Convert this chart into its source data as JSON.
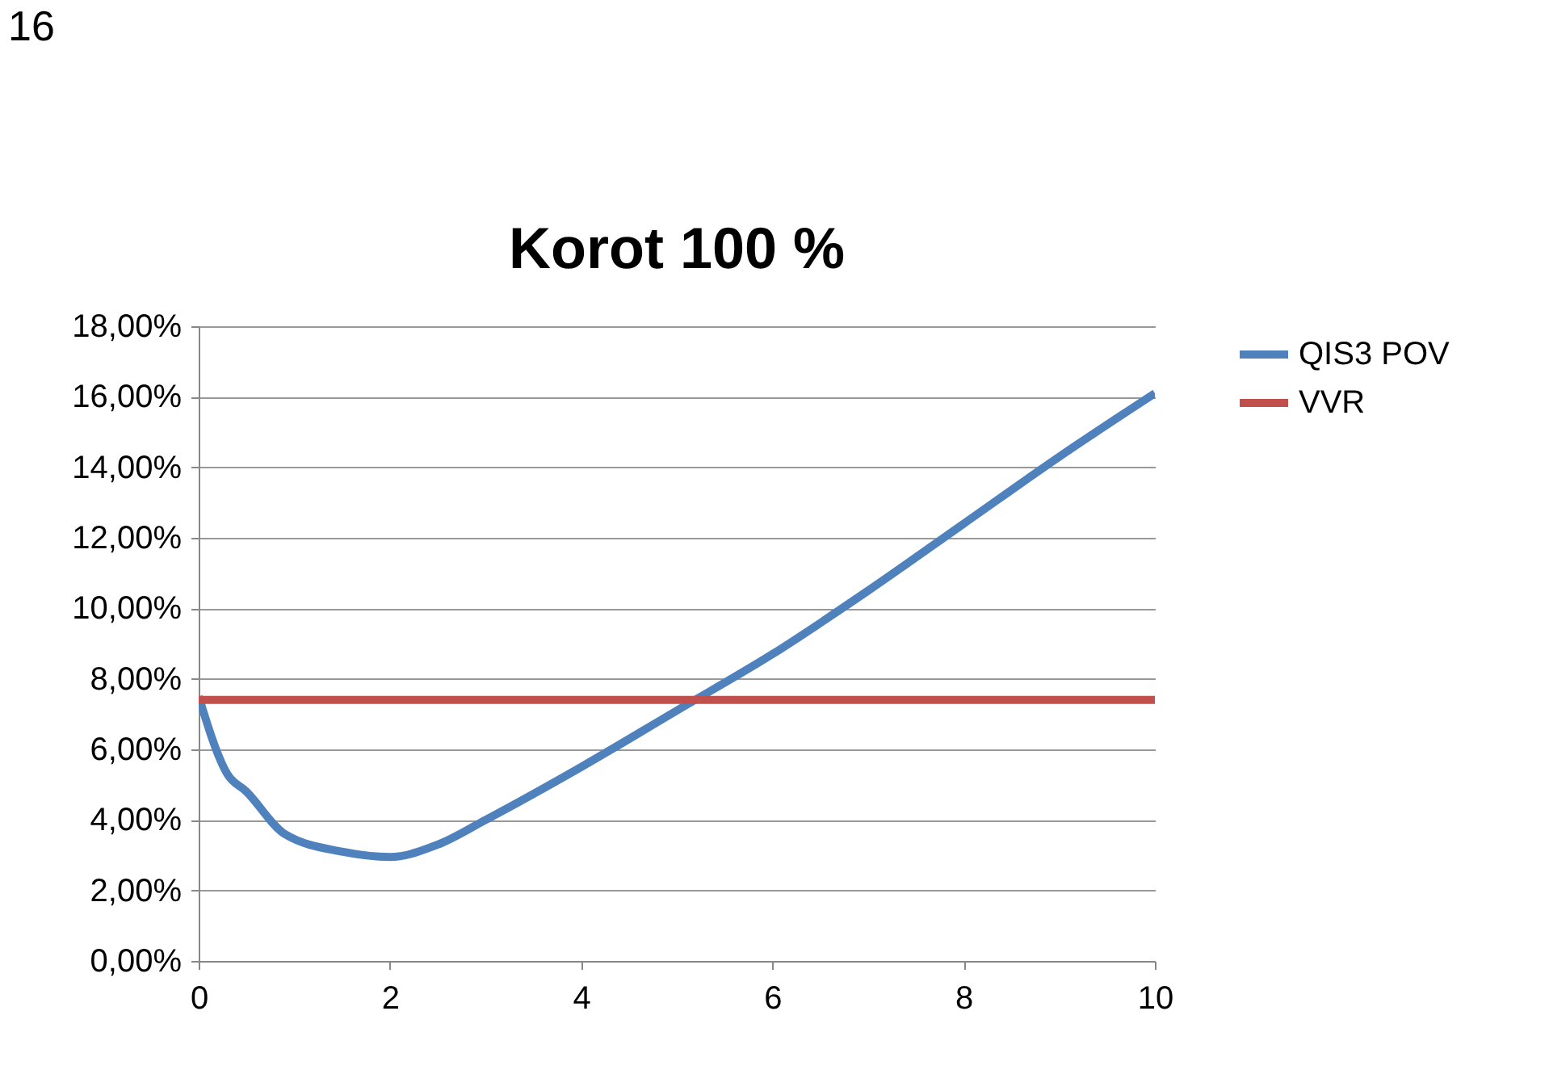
{
  "chart_data": {
    "type": "line",
    "title": "Korot 100 %",
    "annotations": [
      "16"
    ],
    "xlim": [
      0,
      10
    ],
    "xticks": [
      0,
      2,
      4,
      6,
      8,
      10
    ],
    "ylim": [
      0,
      18
    ],
    "yticks": [
      {
        "value": 0,
        "label": "0,00%"
      },
      {
        "value": 2,
        "label": "2,00%"
      },
      {
        "value": 4,
        "label": "4,00%"
      },
      {
        "value": 6,
        "label": "6,00%"
      },
      {
        "value": 8,
        "label": "8,00%"
      },
      {
        "value": 10,
        "label": "10,00%"
      },
      {
        "value": 12,
        "label": "12,00%"
      },
      {
        "value": 14,
        "label": "14,00%"
      },
      {
        "value": 16,
        "label": "16,00%"
      },
      {
        "value": 18,
        "label": "18,00%"
      }
    ],
    "grid": "y",
    "legend": "right",
    "marker": "none",
    "line_style": "solid",
    "series": [
      {
        "name": "QIS3 POV",
        "color": "#4f81bd",
        "x": [
          0,
          0.3,
          0.5,
          0.9,
          1.5,
          2,
          2.5,
          3,
          4,
          5,
          6,
          7,
          8,
          9,
          10
        ],
        "values": [
          7.5,
          5.3,
          4.8,
          3.6,
          3.1,
          2.95,
          3.3,
          4.0,
          5.5,
          7.1,
          8.7,
          10.5,
          12.4,
          14.3,
          16.1
        ]
      },
      {
        "name": "VVR",
        "color": "#c0504d",
        "x": [
          0,
          10
        ],
        "values": [
          7.4,
          7.4
        ]
      }
    ]
  }
}
